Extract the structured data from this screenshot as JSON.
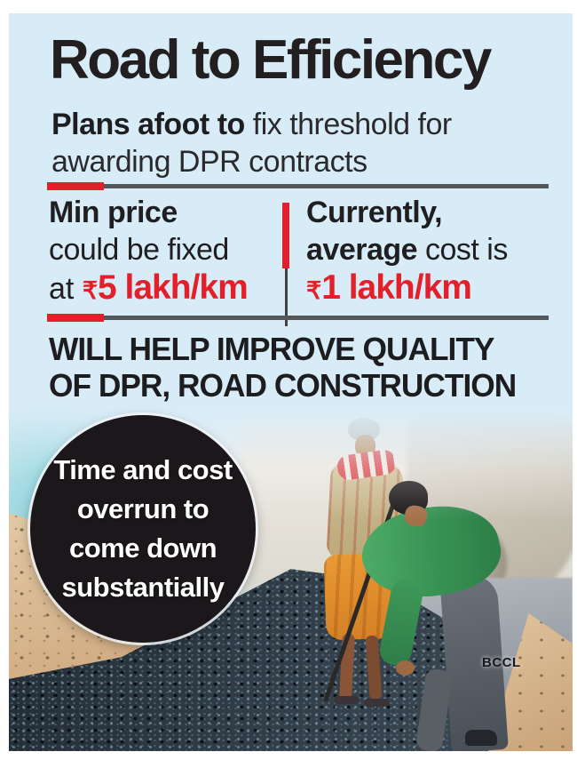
{
  "header": {
    "title": "Road to Efficiency",
    "subtitle_line1_bold": "Plans afoot to",
    "subtitle_line1_rest": " fix threshold for",
    "subtitle_line2": "awarding DPR contracts"
  },
  "stats": {
    "left": {
      "line1": "Min price",
      "line2": "could be fixed",
      "line3_prefix": "at ",
      "currency": "₹",
      "value": "5 lakh/km"
    },
    "right": {
      "line1": "Currently,",
      "line2_bold": "average",
      "line2_rest": " cost is",
      "currency": "₹",
      "value": "1 lakh/km"
    }
  },
  "headline": {
    "line1": "WILL HELP IMPROVE QUALITY",
    "line2": "OF DPR, ROAD CONSTRUCTION"
  },
  "circle_callout": {
    "lines": [
      "Time and cost",
      "overrun to",
      "come down",
      "substantially"
    ]
  },
  "photo": {
    "credit": "BCCL"
  },
  "colors": {
    "accent_red": "#e32029",
    "panel_blue": "#d8ecf8",
    "ink": "#231f20",
    "rule_gray": "#54565a",
    "circle_bg": "#1b171a",
    "circle_text": "#ffffff"
  }
}
